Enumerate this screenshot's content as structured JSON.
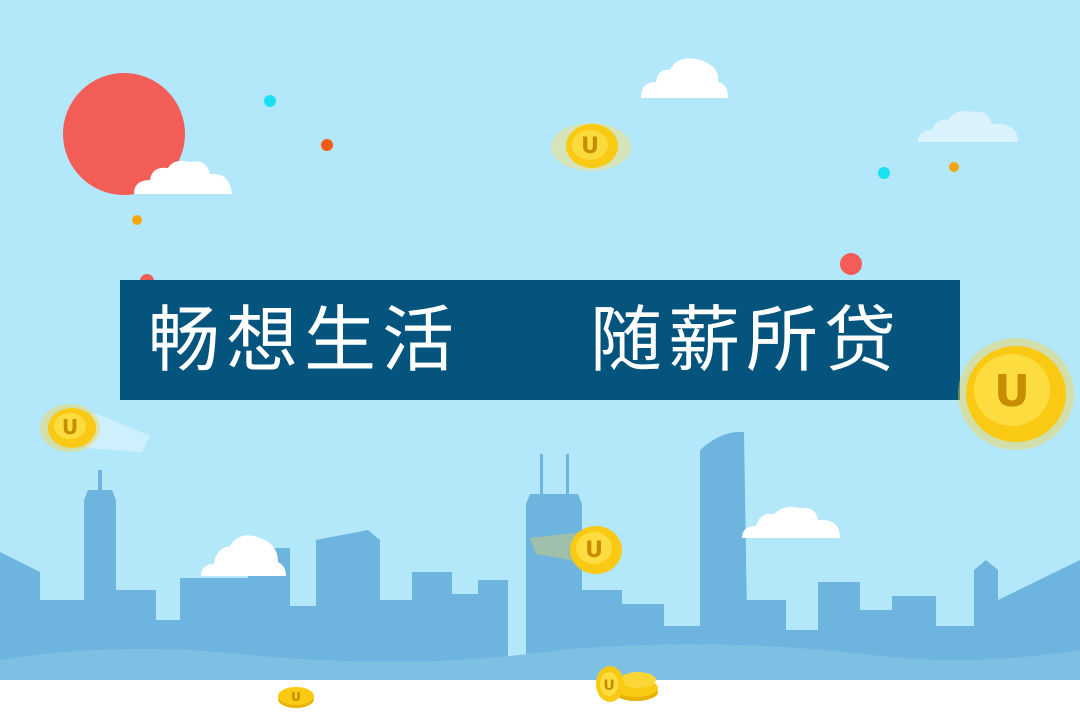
{
  "banner": {
    "text_left": "畅想生活",
    "text_right": "随薪所贷"
  },
  "coin_letter": "U",
  "colors": {
    "sky": "#b3e8fb",
    "buildings": "#6db5de",
    "banner_bg": "#05547e",
    "banner_text": "#ffffff",
    "sun": "#f35d58",
    "coin_gold": "#f9c914",
    "cloud": "#ffffff"
  },
  "icons": [
    "sun-icon",
    "cloud-icon",
    "coin-icon",
    "dot-icon",
    "skyline-illustration"
  ]
}
